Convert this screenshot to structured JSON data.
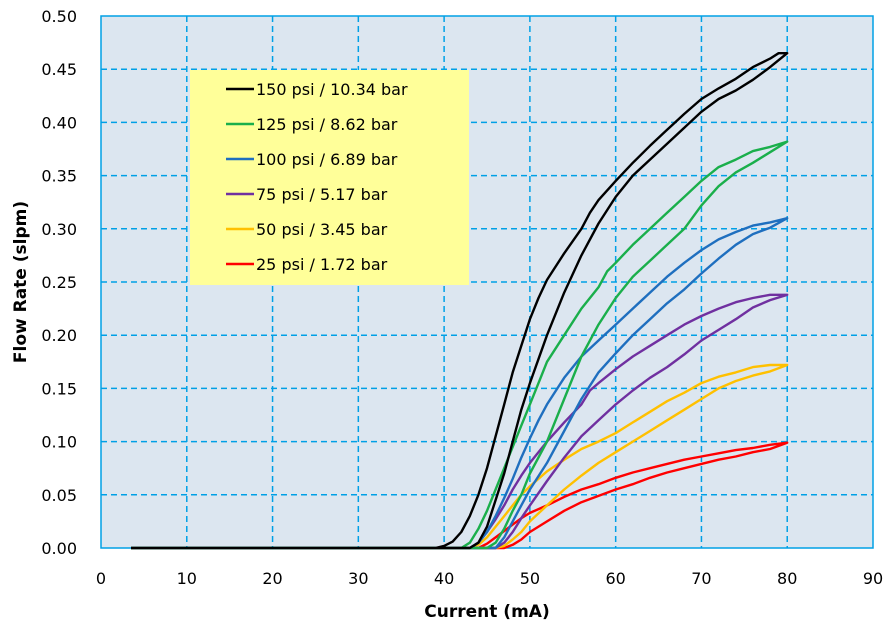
{
  "chart_data": {
    "type": "line",
    "xlabel": "Current (mA)",
    "ylabel": "Flow Rate (slpm)",
    "xlim": [
      0,
      90
    ],
    "ylim": [
      0,
      0.5
    ],
    "xticks": [
      0,
      10,
      20,
      30,
      40,
      50,
      60,
      70,
      80,
      90
    ],
    "yticks": [
      0.0,
      0.05,
      0.1,
      0.15,
      0.2,
      0.25,
      0.3,
      0.35,
      0.4,
      0.45,
      0.5
    ],
    "grid": true,
    "legend_position": "top-left",
    "colors": {
      "plot_background": "#dce6f0",
      "grid": "#00a0e6",
      "frame": "#00a0e6",
      "legend_background": "#ffff99"
    },
    "series": [
      {
        "name": "150 psi / 10.34 bar",
        "color": "#000000",
        "up": [
          [
            3.5,
            0
          ],
          [
            39,
            0
          ],
          [
            40,
            0.002
          ],
          [
            41,
            0.006
          ],
          [
            42,
            0.015
          ],
          [
            43,
            0.03
          ],
          [
            44,
            0.05
          ],
          [
            45,
            0.075
          ],
          [
            46,
            0.105
          ],
          [
            47,
            0.135
          ],
          [
            48,
            0.165
          ],
          [
            49,
            0.19
          ],
          [
            50,
            0.215
          ],
          [
            51,
            0.235
          ],
          [
            52,
            0.252
          ],
          [
            54,
            0.277
          ],
          [
            56,
            0.3
          ],
          [
            57,
            0.315
          ],
          [
            58,
            0.327
          ],
          [
            60,
            0.345
          ],
          [
            62,
            0.362
          ],
          [
            64,
            0.378
          ],
          [
            66,
            0.393
          ],
          [
            68,
            0.408
          ],
          [
            70,
            0.422
          ],
          [
            72,
            0.432
          ],
          [
            74,
            0.441
          ],
          [
            76,
            0.452
          ],
          [
            78,
            0.46
          ],
          [
            79,
            0.465
          ],
          [
            80,
            0.465
          ]
        ],
        "down": [
          [
            80,
            0.465
          ],
          [
            78,
            0.452
          ],
          [
            76,
            0.44
          ],
          [
            74,
            0.43
          ],
          [
            72,
            0.422
          ],
          [
            70,
            0.41
          ],
          [
            68,
            0.395
          ],
          [
            66,
            0.38
          ],
          [
            64,
            0.365
          ],
          [
            62,
            0.35
          ],
          [
            60,
            0.33
          ],
          [
            58,
            0.305
          ],
          [
            56,
            0.275
          ],
          [
            54,
            0.24
          ],
          [
            52,
            0.2
          ],
          [
            50,
            0.155
          ],
          [
            49,
            0.13
          ],
          [
            48,
            0.1
          ],
          [
            47,
            0.07
          ],
          [
            46,
            0.045
          ],
          [
            45,
            0.02
          ],
          [
            44,
            0.005
          ],
          [
            43,
            0
          ],
          [
            3.5,
            0
          ]
        ]
      },
      {
        "name": "125 psi / 8.62 bar",
        "color": "#1aaf4b",
        "up": [
          [
            3.5,
            0
          ],
          [
            42,
            0
          ],
          [
            43,
            0.005
          ],
          [
            44,
            0.018
          ],
          [
            45,
            0.035
          ],
          [
            46,
            0.055
          ],
          [
            47,
            0.075
          ],
          [
            48,
            0.095
          ],
          [
            49,
            0.115
          ],
          [
            50,
            0.135
          ],
          [
            51,
            0.155
          ],
          [
            52,
            0.175
          ],
          [
            54,
            0.2
          ],
          [
            56,
            0.225
          ],
          [
            58,
            0.245
          ],
          [
            59,
            0.26
          ],
          [
            60,
            0.268
          ],
          [
            62,
            0.285
          ],
          [
            64,
            0.3
          ],
          [
            66,
            0.315
          ],
          [
            68,
            0.33
          ],
          [
            70,
            0.345
          ],
          [
            72,
            0.358
          ],
          [
            74,
            0.365
          ],
          [
            76,
            0.373
          ],
          [
            78,
            0.377
          ],
          [
            80,
            0.382
          ]
        ],
        "down": [
          [
            80,
            0.382
          ],
          [
            78,
            0.372
          ],
          [
            76,
            0.362
          ],
          [
            74,
            0.353
          ],
          [
            72,
            0.34
          ],
          [
            70,
            0.322
          ],
          [
            68,
            0.3
          ],
          [
            66,
            0.285
          ],
          [
            64,
            0.27
          ],
          [
            62,
            0.255
          ],
          [
            60,
            0.235
          ],
          [
            58,
            0.21
          ],
          [
            56,
            0.18
          ],
          [
            54,
            0.14
          ],
          [
            52,
            0.1
          ],
          [
            50,
            0.07
          ],
          [
            49,
            0.05
          ],
          [
            48,
            0.035
          ],
          [
            47,
            0.018
          ],
          [
            46,
            0.005
          ],
          [
            45,
            0
          ],
          [
            3.5,
            0
          ]
        ]
      },
      {
        "name": "100 psi / 6.89 bar",
        "color": "#1f6fbf",
        "up": [
          [
            3.5,
            0
          ],
          [
            43,
            0
          ],
          [
            44,
            0.005
          ],
          [
            45,
            0.015
          ],
          [
            46,
            0.03
          ],
          [
            47,
            0.047
          ],
          [
            48,
            0.065
          ],
          [
            49,
            0.085
          ],
          [
            50,
            0.103
          ],
          [
            51,
            0.12
          ],
          [
            52,
            0.135
          ],
          [
            54,
            0.16
          ],
          [
            56,
            0.18
          ],
          [
            58,
            0.195
          ],
          [
            60,
            0.21
          ],
          [
            62,
            0.225
          ],
          [
            64,
            0.24
          ],
          [
            66,
            0.255
          ],
          [
            68,
            0.268
          ],
          [
            70,
            0.28
          ],
          [
            72,
            0.29
          ],
          [
            74,
            0.297
          ],
          [
            76,
            0.303
          ],
          [
            78,
            0.306
          ],
          [
            80,
            0.31
          ]
        ],
        "down": [
          [
            80,
            0.31
          ],
          [
            78,
            0.301
          ],
          [
            76,
            0.295
          ],
          [
            74,
            0.285
          ],
          [
            72,
            0.272
          ],
          [
            70,
            0.258
          ],
          [
            68,
            0.243
          ],
          [
            66,
            0.23
          ],
          [
            64,
            0.215
          ],
          [
            62,
            0.2
          ],
          [
            60,
            0.183
          ],
          [
            58,
            0.165
          ],
          [
            56,
            0.14
          ],
          [
            54,
            0.11
          ],
          [
            52,
            0.08
          ],
          [
            50,
            0.055
          ],
          [
            49,
            0.04
          ],
          [
            48,
            0.025
          ],
          [
            47,
            0.01
          ],
          [
            46,
            0
          ],
          [
            3.5,
            0
          ]
        ]
      },
      {
        "name": "75 psi / 5.17 bar",
        "color": "#7030a0",
        "up": [
          [
            3.5,
            0
          ],
          [
            43,
            0
          ],
          [
            44,
            0.005
          ],
          [
            45,
            0.015
          ],
          [
            46,
            0.027
          ],
          [
            47,
            0.04
          ],
          [
            48,
            0.055
          ],
          [
            49,
            0.068
          ],
          [
            50,
            0.08
          ],
          [
            52,
            0.1
          ],
          [
            54,
            0.118
          ],
          [
            56,
            0.135
          ],
          [
            57,
            0.148
          ],
          [
            58,
            0.155
          ],
          [
            60,
            0.168
          ],
          [
            62,
            0.18
          ],
          [
            64,
            0.19
          ],
          [
            66,
            0.2
          ],
          [
            68,
            0.21
          ],
          [
            70,
            0.218
          ],
          [
            72,
            0.225
          ],
          [
            74,
            0.231
          ],
          [
            76,
            0.235
          ],
          [
            78,
            0.238
          ],
          [
            80,
            0.238
          ]
        ],
        "down": [
          [
            80,
            0.238
          ],
          [
            78,
            0.233
          ],
          [
            76,
            0.226
          ],
          [
            74,
            0.215
          ],
          [
            72,
            0.205
          ],
          [
            70,
            0.195
          ],
          [
            68,
            0.182
          ],
          [
            66,
            0.17
          ],
          [
            64,
            0.16
          ],
          [
            62,
            0.148
          ],
          [
            60,
            0.135
          ],
          [
            58,
            0.12
          ],
          [
            56,
            0.105
          ],
          [
            54,
            0.085
          ],
          [
            52,
            0.063
          ],
          [
            50,
            0.04
          ],
          [
            49,
            0.028
          ],
          [
            48,
            0.015
          ],
          [
            47,
            0.005
          ],
          [
            46,
            0
          ],
          [
            3.5,
            0
          ]
        ]
      },
      {
        "name": "50 psi / 3.45 bar",
        "color": "#ffc000",
        "up": [
          [
            3.5,
            0
          ],
          [
            43,
            0
          ],
          [
            44,
            0.003
          ],
          [
            45,
            0.01
          ],
          [
            46,
            0.02
          ],
          [
            47,
            0.03
          ],
          [
            48,
            0.04
          ],
          [
            49,
            0.05
          ],
          [
            50,
            0.058
          ],
          [
            52,
            0.072
          ],
          [
            54,
            0.083
          ],
          [
            56,
            0.093
          ],
          [
            58,
            0.1
          ],
          [
            60,
            0.108
          ],
          [
            62,
            0.118
          ],
          [
            64,
            0.128
          ],
          [
            66,
            0.138
          ],
          [
            68,
            0.146
          ],
          [
            70,
            0.155
          ],
          [
            72,
            0.161
          ],
          [
            74,
            0.165
          ],
          [
            76,
            0.17
          ],
          [
            78,
            0.172
          ],
          [
            80,
            0.172
          ]
        ],
        "down": [
          [
            80,
            0.172
          ],
          [
            78,
            0.166
          ],
          [
            76,
            0.162
          ],
          [
            74,
            0.157
          ],
          [
            72,
            0.15
          ],
          [
            70,
            0.14
          ],
          [
            68,
            0.13
          ],
          [
            66,
            0.12
          ],
          [
            64,
            0.11
          ],
          [
            62,
            0.1
          ],
          [
            60,
            0.09
          ],
          [
            58,
            0.08
          ],
          [
            56,
            0.068
          ],
          [
            54,
            0.055
          ],
          [
            52,
            0.04
          ],
          [
            50,
            0.025
          ],
          [
            49,
            0.015
          ],
          [
            48,
            0.008
          ],
          [
            47,
            0.002
          ],
          [
            46,
            0
          ],
          [
            3.5,
            0
          ]
        ]
      },
      {
        "name": "25 psi / 1.72 bar",
        "color": "#ff0000",
        "up": [
          [
            3.5,
            0
          ],
          [
            44,
            0
          ],
          [
            45,
            0.004
          ],
          [
            46,
            0.01
          ],
          [
            47,
            0.016
          ],
          [
            48,
            0.022
          ],
          [
            49,
            0.028
          ],
          [
            50,
            0.033
          ],
          [
            52,
            0.04
          ],
          [
            54,
            0.048
          ],
          [
            56,
            0.055
          ],
          [
            58,
            0.06
          ],
          [
            60,
            0.066
          ],
          [
            62,
            0.071
          ],
          [
            64,
            0.075
          ],
          [
            66,
            0.079
          ],
          [
            68,
            0.083
          ],
          [
            70,
            0.086
          ],
          [
            72,
            0.089
          ],
          [
            74,
            0.092
          ],
          [
            76,
            0.094
          ],
          [
            78,
            0.097
          ],
          [
            80,
            0.099
          ]
        ],
        "down": [
          [
            80,
            0.099
          ],
          [
            78,
            0.093
          ],
          [
            76,
            0.09
          ],
          [
            74,
            0.086
          ],
          [
            72,
            0.083
          ],
          [
            70,
            0.079
          ],
          [
            68,
            0.075
          ],
          [
            66,
            0.071
          ],
          [
            64,
            0.066
          ],
          [
            62,
            0.06
          ],
          [
            60,
            0.055
          ],
          [
            58,
            0.049
          ],
          [
            56,
            0.043
          ],
          [
            54,
            0.035
          ],
          [
            52,
            0.025
          ],
          [
            50,
            0.015
          ],
          [
            49,
            0.008
          ],
          [
            48,
            0.003
          ],
          [
            47,
            0
          ],
          [
            3.5,
            0
          ]
        ]
      }
    ]
  }
}
